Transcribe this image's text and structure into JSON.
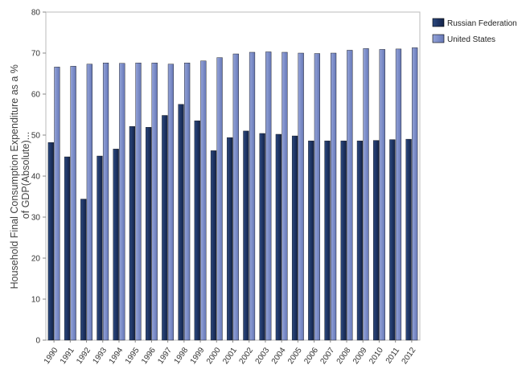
{
  "chart_data": {
    "type": "bar",
    "ylabel_lines": [
      "Household Final Consumption Expenditure as a %",
      "of GDP(Absolute)..."
    ],
    "xlabel": "",
    "ylim": [
      0,
      80
    ],
    "yticks": [
      0,
      10,
      20,
      30,
      40,
      50,
      60,
      70,
      80
    ],
    "categories": [
      "1990",
      "1991",
      "1992",
      "1993",
      "1994",
      "1995",
      "1996",
      "1997",
      "1998",
      "1999",
      "2000",
      "2001",
      "2002",
      "2003",
      "2004",
      "2005",
      "2006",
      "2007",
      "2008",
      "2009",
      "2010",
      "2011",
      "2012"
    ],
    "series": [
      {
        "name": "Russian Federation",
        "color": "#1f3564",
        "values": [
          48.2,
          44.7,
          34.4,
          44.9,
          46.6,
          52.1,
          51.9,
          54.8,
          57.5,
          53.5,
          46.2,
          49.4,
          51.0,
          50.4,
          50.2,
          49.8,
          48.6,
          48.6,
          48.6,
          48.6,
          48.7,
          48.9,
          49.0
        ]
      },
      {
        "name": "United States",
        "color": "#7d8ec9",
        "values": [
          66.6,
          66.8,
          67.3,
          67.6,
          67.5,
          67.6,
          67.6,
          67.3,
          67.6,
          68.1,
          68.9,
          69.8,
          70.2,
          70.3,
          70.2,
          70.0,
          69.9,
          70.0,
          70.7,
          71.1,
          70.9,
          71.0,
          71.3
        ]
      }
    ],
    "grid": false,
    "legend_position": "top-right"
  }
}
